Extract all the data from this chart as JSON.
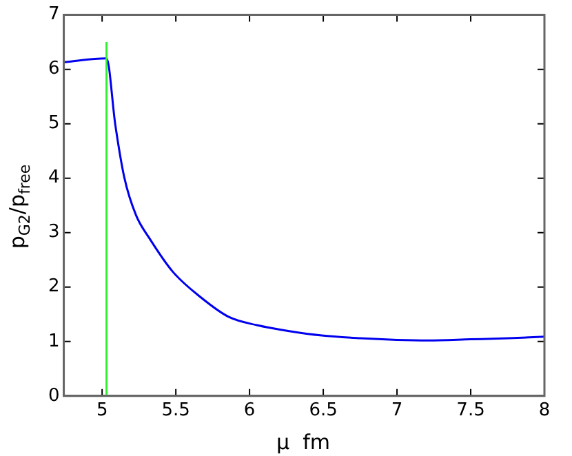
{
  "chart_data": {
    "type": "line",
    "xlabel": "μ  fm",
    "ylabel": "p$_{G2}$/p$_{free}$",
    "xlim": [
      4.74,
      8
    ],
    "ylim": [
      0,
      7
    ],
    "xticks": [
      5,
      5.5,
      6,
      6.5,
      7,
      7.5,
      8
    ],
    "yticks": [
      0,
      1,
      2,
      3,
      4,
      5,
      6,
      7
    ],
    "grid": false,
    "legend": false,
    "marker": "none",
    "line_style": "solid",
    "series": [
      {
        "color": "#0000ee",
        "x": [
          4.74,
          5.03,
          5.09,
          5.15,
          5.23,
          5.32,
          5.48,
          5.67,
          5.86,
          6.05,
          6.27,
          6.49,
          6.75,
          7,
          7.21,
          7.5,
          7.76,
          8
        ],
        "values": [
          6.13,
          6.2,
          4.97,
          4.02,
          3.32,
          2.9,
          2.28,
          1.81,
          1.45,
          1.3,
          1.19,
          1.11,
          1.06,
          1.03,
          1.02,
          1.04,
          1.06,
          1.09
        ]
      },
      {
        "color": "#33ee33",
        "x": [
          5.03,
          5.03
        ],
        "values": [
          0,
          6.5
        ]
      }
    ]
  }
}
